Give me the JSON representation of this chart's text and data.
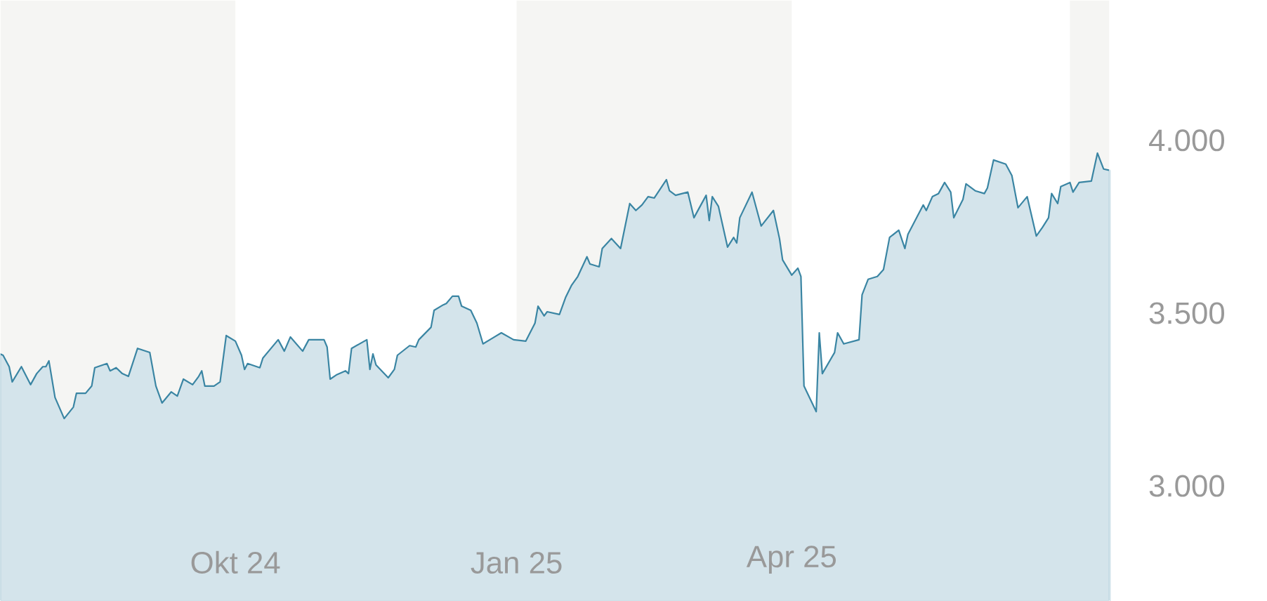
{
  "chart_data": {
    "type": "area",
    "color": "#3a85a3",
    "x": [
      "2024-07-16",
      "2024-07-17",
      "2024-07-19",
      "2024-07-20",
      "2024-07-23",
      "2024-07-26",
      "2024-07-28",
      "2024-07-30",
      "2024-07-31",
      "2024-08-01",
      "2024-08-03",
      "2024-08-06",
      "2024-08-09",
      "2024-08-10",
      "2024-08-13",
      "2024-08-15",
      "2024-08-16",
      "2024-08-20",
      "2024-08-21",
      "2024-08-23",
      "2024-08-25",
      "2024-08-27",
      "2024-08-30",
      "2024-09-03",
      "2024-09-05",
      "2024-09-07",
      "2024-09-10",
      "2024-09-12",
      "2024-09-14",
      "2024-09-17",
      "2024-09-19",
      "2024-09-20",
      "2024-09-21",
      "2024-09-24",
      "2024-09-26",
      "2024-09-28",
      "2024-10-01",
      "2024-10-03",
      "2024-10-04",
      "2024-10-05",
      "2024-10-09",
      "2024-10-10",
      "2024-10-15",
      "2024-10-17",
      "2024-10-19",
      "2024-10-23",
      "2024-10-25",
      "2024-10-30",
      "2024-10-31",
      "2024-11-01",
      "2024-11-03",
      "2024-11-06",
      "2024-11-07",
      "2024-11-08",
      "2024-11-13",
      "2024-11-14",
      "2024-11-15",
      "2024-11-16",
      "2024-11-20",
      "2024-11-22",
      "2024-11-23",
      "2024-11-27",
      "2024-11-29",
      "2024-11-30",
      "2024-12-04",
      "2024-12-05",
      "2024-12-08",
      "2024-12-09",
      "2024-12-11",
      "2024-12-13",
      "2024-12-14",
      "2024-12-17",
      "2024-12-19",
      "2024-12-21",
      "2024-12-24",
      "2024-12-27",
      "2024-12-31",
      "2025-01-04",
      "2025-01-07",
      "2025-01-08",
      "2025-01-10",
      "2025-01-11",
      "2025-01-15",
      "2025-01-17",
      "2025-01-19",
      "2025-01-21",
      "2025-01-24",
      "2025-01-25",
      "2025-01-28",
      "2025-01-29",
      "2025-02-01",
      "2025-02-04",
      "2025-02-07",
      "2025-02-09",
      "2025-02-11",
      "2025-02-13",
      "2025-02-15",
      "2025-02-19",
      "2025-02-20",
      "2025-02-22",
      "2025-02-26",
      "2025-02-28",
      "2025-03-04",
      "2025-03-05",
      "2025-03-06",
      "2025-03-08",
      "2025-03-11",
      "2025-03-13",
      "2025-03-14",
      "2025-03-15",
      "2025-03-19",
      "2025-03-22",
      "2025-03-26",
      "2025-03-28",
      "2025-03-29",
      "2025-04-01",
      "2025-04-03",
      "2025-04-04",
      "2025-04-05",
      "2025-04-09",
      "2025-04-10",
      "2025-04-11",
      "2025-04-15",
      "2025-04-16",
      "2025-04-18",
      "2025-04-23",
      "2025-04-24",
      "2025-04-26",
      "2025-04-29",
      "2025-05-01",
      "2025-05-03",
      "2025-05-06",
      "2025-05-08",
      "2025-05-09",
      "2025-05-14",
      "2025-05-15",
      "2025-05-17",
      "2025-05-19",
      "2025-05-21",
      "2025-05-23",
      "2025-05-24",
      "2025-05-27",
      "2025-05-28",
      "2025-05-31",
      "2025-06-03",
      "2025-06-04",
      "2025-06-06",
      "2025-06-10",
      "2025-06-12",
      "2025-06-14",
      "2025-06-17",
      "2025-06-20",
      "2025-06-22",
      "2025-06-24",
      "2025-06-25",
      "2025-06-27",
      "2025-06-28",
      "2025-07-01",
      "2025-07-02",
      "2025-07-04",
      "2025-07-08",
      "2025-07-10",
      "2025-07-12",
      "2025-07-14"
    ],
    "values": [
      3382,
      3378,
      3345,
      3301,
      3345,
      3293,
      3325,
      3345,
      3345,
      3362,
      3256,
      3195,
      3228,
      3268,
      3268,
      3289,
      3342,
      3354,
      3333,
      3342,
      3325,
      3317,
      3398,
      3386,
      3289,
      3240,
      3272,
      3260,
      3309,
      3293,
      3317,
      3333,
      3289,
      3289,
      3301,
      3435,
      3419,
      3378,
      3337,
      3354,
      3342,
      3370,
      3423,
      3390,
      3431,
      3390,
      3423,
      3423,
      3402,
      3309,
      3321,
      3333,
      3325,
      3398,
      3423,
      3337,
      3382,
      3350,
      3313,
      3337,
      3378,
      3406,
      3402,
      3423,
      3459,
      3508,
      3524,
      3528,
      3549,
      3549,
      3520,
      3508,
      3471,
      3411,
      3427,
      3443,
      3423,
      3419,
      3471,
      3520,
      3492,
      3504,
      3496,
      3545,
      3581,
      3606,
      3663,
      3642,
      3634,
      3687,
      3716,
      3687,
      3817,
      3797,
      3813,
      3837,
      3833,
      3886,
      3854,
      3841,
      3850,
      3776,
      3841,
      3768,
      3837,
      3809,
      3691,
      3719,
      3703,
      3776,
      3850,
      3752,
      3797,
      3715,
      3654,
      3610,
      3630,
      3606,
      3289,
      3215,
      3443,
      3325,
      3386,
      3443,
      3411,
      3423,
      3553,
      3598,
      3606,
      3626,
      3719,
      3740,
      3687,
      3728,
      3813,
      3797,
      3837,
      3846,
      3878,
      3850,
      3776,
      3829,
      3874,
      3854,
      3846,
      3862,
      3943,
      3931,
      3898,
      3805,
      3837,
      3723,
      3748,
      3776,
      3846,
      3817,
      3866,
      3878,
      3850,
      3878,
      3882,
      3963,
      3917,
      3913
    ],
    "xlim": [
      "2024-07-16",
      "2025-07-14"
    ],
    "ylim": [
      2667,
      4406
    ],
    "xticks": [
      {
        "value": "2024-10-01",
        "label": "Okt 24"
      },
      {
        "value": "2025-01-01",
        "label": "Jan 25"
      },
      {
        "value": "2025-04-01",
        "label": "Apr 25"
      }
    ],
    "yticks": [
      {
        "value": 3000,
        "label": "3.000"
      },
      {
        "value": 3500,
        "label": "3.500"
      },
      {
        "value": 4000,
        "label": "4.000"
      }
    ],
    "bands": [
      {
        "axis": "x",
        "from": "2024-07-16",
        "to": "2024-10-01",
        "color": "#f5f5f3"
      },
      {
        "axis": "x",
        "from": "2025-01-01",
        "to": "2025-04-01",
        "color": "#f5f5f3"
      },
      {
        "axis": "x",
        "from": "2025-07-01",
        "to": "2025-07-14",
        "color": "#f5f5f3"
      }
    ]
  }
}
